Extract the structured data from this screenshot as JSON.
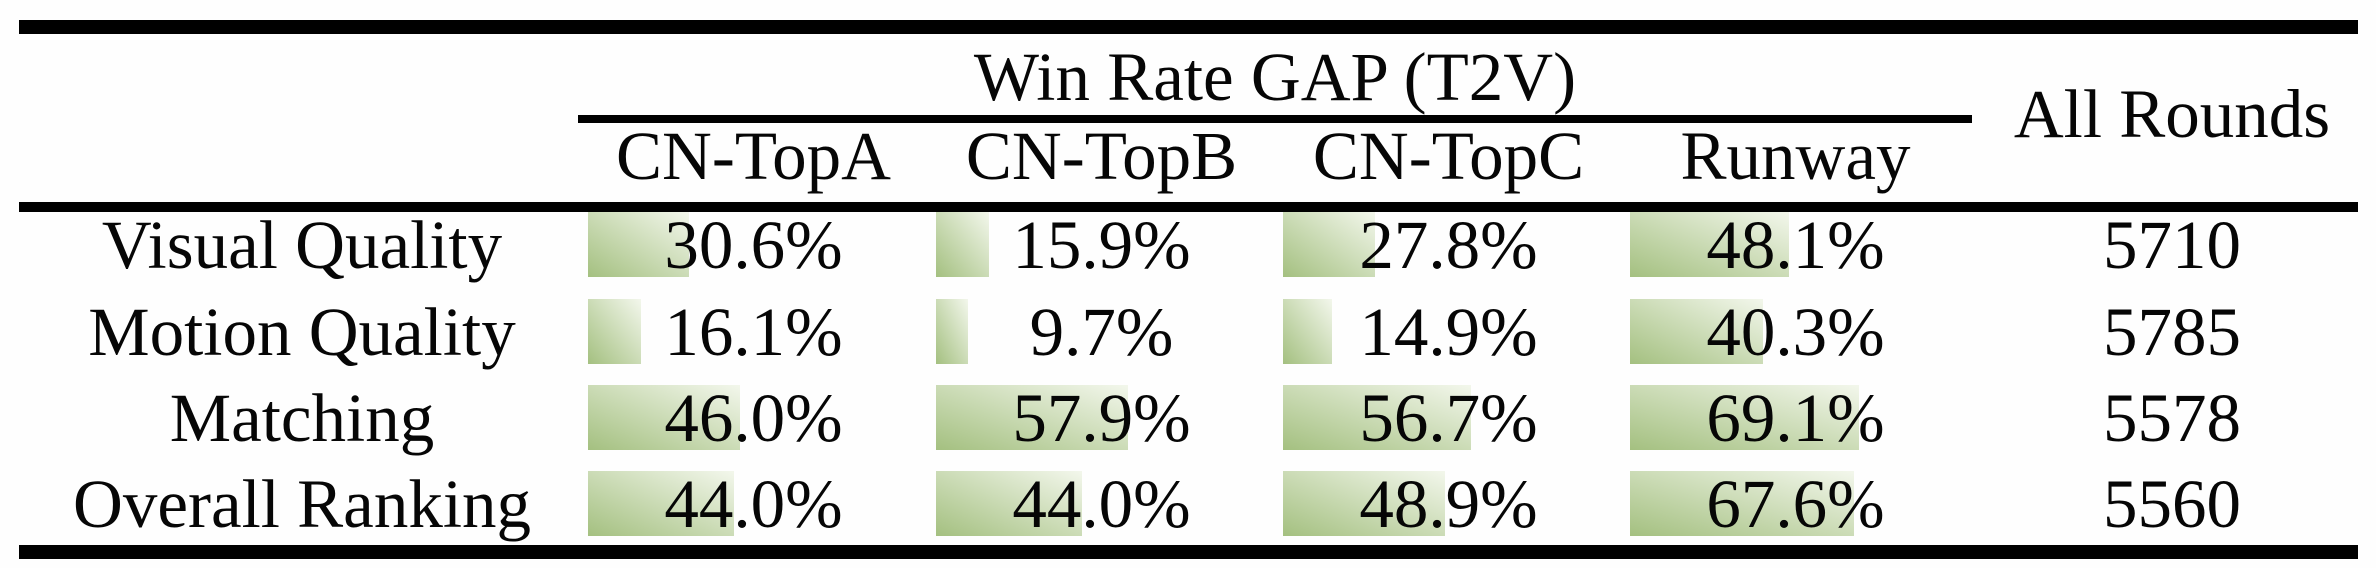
{
  "table": {
    "group_header": "Win Rate GAP (T2V)",
    "all_rounds_header": "All Rounds",
    "columns": [
      "CN-TopA",
      "CN-TopB",
      "CN-TopC",
      "Runway"
    ],
    "rows": [
      {
        "label": "Visual Quality",
        "cells": [
          {
            "display": "30.6%",
            "value": 30.6
          },
          {
            "display": "15.9%",
            "value": 15.9
          },
          {
            "display": "27.8%",
            "value": 27.8
          },
          {
            "display": "48.1%",
            "value": 48.1
          }
        ],
        "all_rounds": "5710"
      },
      {
        "label": "Motion Quality",
        "cells": [
          {
            "display": "16.1%",
            "value": 16.1
          },
          {
            "display": "9.7%",
            "value": 9.7
          },
          {
            "display": "14.9%",
            "value": 14.9
          },
          {
            "display": "40.3%",
            "value": 40.3
          }
        ],
        "all_rounds": "5785"
      },
      {
        "label": "Matching",
        "cells": [
          {
            "display": "46.0%",
            "value": 46.0
          },
          {
            "display": "57.9%",
            "value": 57.9
          },
          {
            "display": "56.7%",
            "value": 56.7
          },
          {
            "display": "69.1%",
            "value": 69.1
          }
        ],
        "all_rounds": "5578"
      },
      {
        "label": "Overall Ranking",
        "cells": [
          {
            "display": "44.0%",
            "value": 44.0
          },
          {
            "display": "44.0%",
            "value": 44.0
          },
          {
            "display": "48.9%",
            "value": 48.9
          },
          {
            "display": "67.6%",
            "value": 67.6
          }
        ],
        "all_rounds": "5560"
      }
    ]
  },
  "colors": {
    "bar_gradient_start": "#a4c080",
    "bar_gradient_end": "#f3f7ec",
    "rule": "#000000",
    "text": "#060606",
    "background": "#fefefe"
  }
}
